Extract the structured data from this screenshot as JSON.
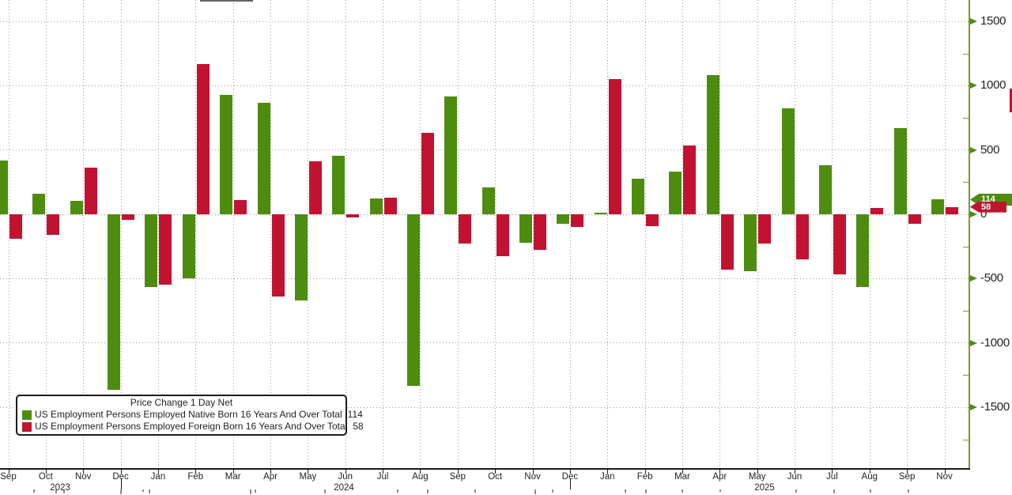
{
  "chart_data": {
    "type": "bar",
    "title": "Price Change 1 Day Net",
    "legend_position": "bottom-left",
    "grid": true,
    "colors": {
      "native_bar": "#4e8c10",
      "foreign_bar": "#c11331",
      "axis_line": "#7a9b2e",
      "background": "#ffffff"
    },
    "legend": [
      {
        "label": "US Employment Persons Employed Native Born 16 Years And Over Total",
        "last_value": "114",
        "color": "#4e8c10"
      },
      {
        "label": "US Employment Persons Employed Foreign Born 16 Years And Over Total",
        "last_value": "58",
        "color": "#c11331"
      }
    ],
    "y_axis": {
      "side": "right",
      "major_labels": [
        1500,
        1000,
        500,
        0,
        -500,
        -1000,
        -1500
      ],
      "minor_ticks": [
        1250,
        750,
        250,
        -250,
        -750,
        -1250,
        -1750
      ]
    },
    "x_ticks": [
      "Sep",
      "Oct",
      "Nov",
      "Dec",
      "Jan",
      "Feb",
      "Mar",
      "Apr",
      "May",
      "Jun",
      "Jul",
      "Aug",
      "Sep",
      "Oct",
      "Nov",
      "Dec",
      "Jan",
      "Feb",
      "Mar",
      "Apr",
      "May",
      "Jun",
      "Jul",
      "Aug",
      "Sep",
      "Nov"
    ],
    "year_labels": [
      "2023",
      "2024",
      "2025"
    ],
    "series": [
      {
        "id": "native_born",
        "name": "US Employment Persons Employed Native Born 16 Years And Over Total",
        "color": "#4e8c10",
        "values": [
          420,
          160,
          105,
          -1365,
          -565,
          -500,
          930,
          865,
          -670,
          455,
          125,
          -1335,
          915,
          210,
          -220,
          -75,
          10,
          275,
          330,
          1080,
          -440,
          825,
          380,
          -565,
          670,
          114
        ]
      },
      {
        "id": "foreign_born",
        "name": "US Employment Persons Employed Foreign Born 16 Years And Over Total",
        "color": "#c11331",
        "values": [
          -190,
          -160,
          360,
          -45,
          -550,
          1170,
          110,
          -640,
          410,
          -25,
          130,
          635,
          -230,
          -325,
          -275,
          -100,
          1050,
          -90,
          535,
          -430,
          -225,
          -350,
          -465,
          50,
          -75,
          58
        ]
      }
    ]
  }
}
